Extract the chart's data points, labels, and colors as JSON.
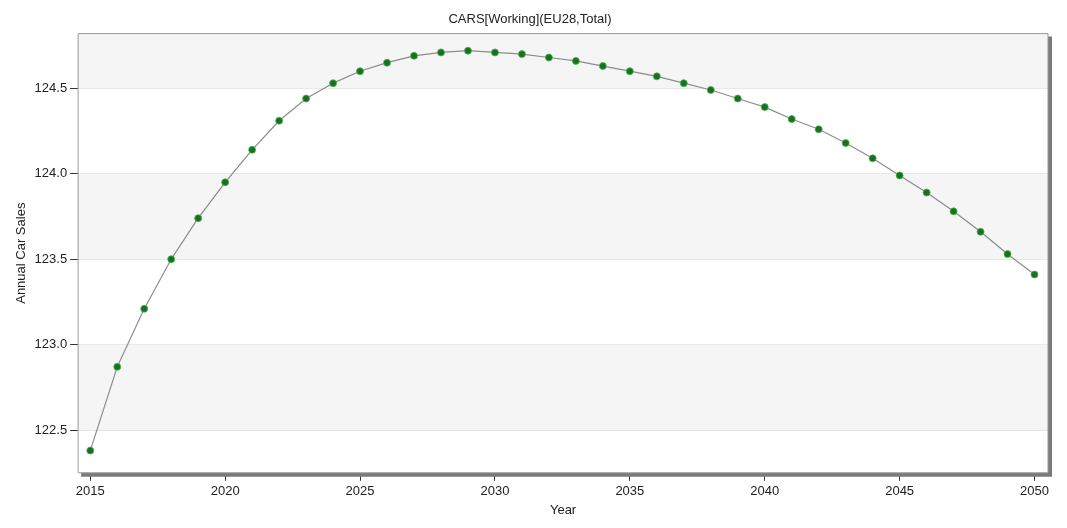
{
  "chart_data": {
    "type": "line",
    "title": "CARS[Working](EU28,Total)",
    "xlabel": "Year",
    "ylabel": "Annual Car Sales",
    "x": [
      2015,
      2016,
      2017,
      2018,
      2019,
      2020,
      2021,
      2022,
      2023,
      2024,
      2025,
      2026,
      2027,
      2028,
      2029,
      2030,
      2031,
      2032,
      2033,
      2034,
      2035,
      2036,
      2037,
      2038,
      2039,
      2040,
      2041,
      2042,
      2043,
      2044,
      2045,
      2046,
      2047,
      2048,
      2049,
      2050
    ],
    "series": [
      {
        "color": "#1f6b2a",
        "values": [
          122.38,
          122.87,
          123.21,
          123.5,
          123.74,
          123.95,
          124.14,
          124.31,
          124.44,
          124.53,
          124.6,
          124.65,
          124.69,
          124.71,
          124.72,
          124.71,
          124.7,
          124.68,
          124.66,
          124.63,
          124.6,
          124.57,
          124.53,
          124.49,
          124.44,
          124.39,
          124.32,
          124.26,
          124.18,
          124.09,
          123.99,
          123.89,
          123.78,
          123.66,
          123.53,
          123.41
        ]
      }
    ],
    "xlim": [
      2014.55,
      2050.5
    ],
    "xticks": [
      2015,
      2020,
      2025,
      2030,
      2035,
      2040,
      2045,
      2050
    ],
    "ylim": [
      122.25,
      124.82
    ],
    "yticks": [
      {
        "value": 122.5,
        "label": "122.5"
      },
      {
        "value": 123.0,
        "label": "123.0"
      },
      {
        "value": 123.5,
        "label": "123.5"
      },
      {
        "value": 124.0,
        "label": "124.0"
      },
      {
        "value": 124.5,
        "label": "124.5"
      }
    ],
    "grid": "y",
    "legend": false,
    "marker": "circle",
    "line_style": "solid"
  }
}
